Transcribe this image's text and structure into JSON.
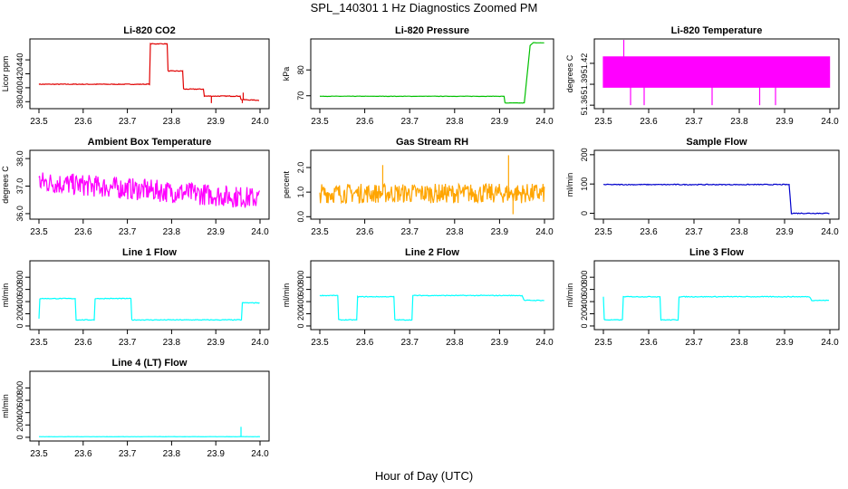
{
  "figure": {
    "title": "SPL_140301  1 Hz Diagnostics Zoomed PM",
    "xlabel": "Hour of Day (UTC)"
  },
  "chart_data": [
    {
      "type": "line",
      "title": "Li-820 CO2",
      "ylabel": "Licor ppm",
      "color": "#e00000",
      "xlim": [
        23.5,
        24.0
      ],
      "ylim": [
        370,
        470
      ],
      "xticks": [
        "23.5",
        "23.6",
        "23.7",
        "23.8",
        "23.9",
        "24.0"
      ],
      "yticks": [
        {
          "v": 380,
          "label": "380"
        },
        {
          "v": 400,
          "label": "400"
        },
        {
          "v": 420,
          "label": "420"
        },
        {
          "v": 440,
          "label": "440"
        }
      ],
      "noise": 1,
      "points": [
        [
          23.5,
          405
        ],
        [
          23.75,
          405
        ],
        [
          23.752,
          463
        ],
        [
          23.79,
          463
        ],
        [
          23.792,
          424
        ],
        [
          23.825,
          424
        ],
        [
          23.827,
          398
        ],
        [
          23.872,
          398
        ],
        [
          23.874,
          388
        ],
        [
          23.955,
          388
        ],
        [
          23.957,
          383
        ],
        [
          24.0,
          382
        ]
      ],
      "spikes": [
        [
          23.89,
          378
        ],
        [
          23.96,
          378
        ],
        [
          23.962,
          393
        ]
      ]
    },
    {
      "type": "line",
      "title": "Li-820 Pressure",
      "ylabel": "kPa",
      "color": "#00c000",
      "xlim": [
        23.5,
        24.0
      ],
      "ylim": [
        65,
        92
      ],
      "xticks": [
        "23.5",
        "23.6",
        "23.7",
        "23.8",
        "23.9",
        "24.0"
      ],
      "yticks": [
        {
          "v": 70,
          "label": "70"
        },
        {
          "v": 80,
          "label": "80"
        }
      ],
      "noise": 0.15,
      "points": [
        [
          23.5,
          69.8
        ],
        [
          23.91,
          69.8
        ],
        [
          23.912,
          67.2
        ],
        [
          23.955,
          67.2
        ],
        [
          23.968,
          89.5
        ],
        [
          23.975,
          90.5
        ],
        [
          24.0,
          90.5
        ]
      ],
      "spikes": []
    },
    {
      "type": "line",
      "title": "Li-820 Temperature",
      "ylabel": "degrees C",
      "color": "#ff00ff",
      "xlim": [
        23.5,
        24.0
      ],
      "ylim": [
        51.355,
        51.455
      ],
      "xticks": [
        "23.5",
        "23.6",
        "23.7",
        "23.8",
        "23.9",
        "24.0"
      ],
      "yticks": [
        {
          "v": 51.36,
          "label": "51.36"
        },
        {
          "v": 51.39,
          "label": "51.39"
        },
        {
          "v": 51.42,
          "label": "51.42"
        }
      ],
      "band": [
        51.385,
        51.43
      ],
      "points": [],
      "spikes": [
        [
          23.545,
          51.455
        ],
        [
          23.56,
          51.36
        ],
        [
          23.59,
          51.36
        ],
        [
          23.74,
          51.36
        ],
        [
          23.845,
          51.36
        ],
        [
          23.88,
          51.36
        ]
      ]
    },
    {
      "type": "line",
      "title": "Ambient Box Temperature",
      "ylabel": "degrees C",
      "color": "#ff00ff",
      "xlim": [
        23.5,
        24.0
      ],
      "ylim": [
        35.8,
        38.3
      ],
      "xticks": [
        "23.5",
        "23.6",
        "23.7",
        "23.8",
        "23.9",
        "24.0"
      ],
      "yticks": [
        {
          "v": 36,
          "label": "36.0"
        },
        {
          "v": 37,
          "label": "37.0"
        },
        {
          "v": 38,
          "label": "38.0"
        }
      ],
      "trend": [
        [
          23.5,
          37.15
        ],
        [
          24.0,
          36.55
        ]
      ],
      "noise": 0.8,
      "points": [],
      "spikes": []
    },
    {
      "type": "line",
      "title": "Gas Stream RH",
      "ylabel": "percent",
      "color": "#ffa500",
      "xlim": [
        23.5,
        24.0
      ],
      "ylim": [
        -0.1,
        2.7
      ],
      "xticks": [
        "23.5",
        "23.6",
        "23.7",
        "23.8",
        "23.9",
        "24.0"
      ],
      "yticks": [
        {
          "v": 0,
          "label": "0.0"
        },
        {
          "v": 1,
          "label": "1.0"
        },
        {
          "v": 2,
          "label": "2.0"
        }
      ],
      "trend": [
        [
          23.5,
          0.95
        ],
        [
          24.0,
          0.95
        ]
      ],
      "noise": 0.8,
      "points": [],
      "spikes": [
        [
          23.64,
          2.1
        ],
        [
          23.92,
          2.5
        ],
        [
          23.93,
          0.1
        ]
      ]
    },
    {
      "type": "line",
      "title": "Sample Flow",
      "ylabel": "ml/min",
      "color": "#0000cc",
      "xlim": [
        23.5,
        24.0
      ],
      "ylim": [
        -20,
        215
      ],
      "xticks": [
        "23.5",
        "23.6",
        "23.7",
        "23.8",
        "23.9",
        "24.0"
      ],
      "yticks": [
        {
          "v": 0,
          "label": "0"
        },
        {
          "v": 100,
          "label": "100"
        },
        {
          "v": 200,
          "label": "200"
        }
      ],
      "noise": 3,
      "points": [
        [
          23.5,
          98
        ],
        [
          23.91,
          98
        ],
        [
          23.915,
          0
        ],
        [
          24.0,
          0
        ]
      ],
      "spikes": []
    },
    {
      "type": "line",
      "title": "Line 1 Flow",
      "ylabel": "ml/min",
      "color": "#00ffff",
      "xlim": [
        23.5,
        24.0
      ],
      "ylim": [
        -60,
        1070
      ],
      "xticks": [
        "23.5",
        "23.6",
        "23.7",
        "23.8",
        "23.9",
        "24.0"
      ],
      "yticks": [
        {
          "v": 0,
          "label": "0"
        },
        {
          "v": 200,
          "label": "200"
        },
        {
          "v": 400,
          "label": "400"
        },
        {
          "v": 600,
          "label": "600"
        },
        {
          "v": 800,
          "label": "800"
        }
      ],
      "noise": 12,
      "points": [
        [
          23.5,
          120
        ],
        [
          23.502,
          450
        ],
        [
          23.582,
          450
        ],
        [
          23.584,
          100
        ],
        [
          23.625,
          100
        ],
        [
          23.627,
          450
        ],
        [
          23.708,
          450
        ],
        [
          23.71,
          100
        ],
        [
          23.958,
          100
        ],
        [
          23.96,
          380
        ],
        [
          24.0,
          380
        ]
      ],
      "spikes": []
    },
    {
      "type": "line",
      "title": "Line 2 Flow",
      "ylabel": "ml/min",
      "color": "#00ffff",
      "xlim": [
        23.5,
        24.0
      ],
      "ylim": [
        -60,
        1070
      ],
      "xticks": [
        "23.5",
        "23.6",
        "23.7",
        "23.8",
        "23.9",
        "24.0"
      ],
      "yticks": [
        {
          "v": 0,
          "label": "0"
        },
        {
          "v": 200,
          "label": "200"
        },
        {
          "v": 400,
          "label": "400"
        },
        {
          "v": 600,
          "label": "600"
        },
        {
          "v": 800,
          "label": "800"
        }
      ],
      "noise": 12,
      "points": [
        [
          23.5,
          500
        ],
        [
          23.54,
          500
        ],
        [
          23.542,
          100
        ],
        [
          23.582,
          100
        ],
        [
          23.584,
          480
        ],
        [
          23.665,
          480
        ],
        [
          23.667,
          100
        ],
        [
          23.705,
          100
        ],
        [
          23.707,
          500
        ],
        [
          23.95,
          500
        ],
        [
          23.955,
          420
        ],
        [
          24.0,
          420
        ]
      ],
      "spikes": []
    },
    {
      "type": "line",
      "title": "Line 3 Flow",
      "ylabel": "ml/min",
      "color": "#00ffff",
      "xlim": [
        23.5,
        24.0
      ],
      "ylim": [
        -60,
        1070
      ],
      "xticks": [
        "23.5",
        "23.6",
        "23.7",
        "23.8",
        "23.9",
        "24.0"
      ],
      "yticks": [
        {
          "v": 0,
          "label": "0"
        },
        {
          "v": 200,
          "label": "200"
        },
        {
          "v": 400,
          "label": "400"
        },
        {
          "v": 600,
          "label": "600"
        },
        {
          "v": 800,
          "label": "800"
        }
      ],
      "noise": 12,
      "points": [
        [
          23.5,
          480
        ],
        [
          23.502,
          100
        ],
        [
          23.542,
          100
        ],
        [
          23.544,
          480
        ],
        [
          23.625,
          480
        ],
        [
          23.627,
          100
        ],
        [
          23.665,
          100
        ],
        [
          23.667,
          480
        ],
        [
          23.955,
          480
        ],
        [
          23.96,
          420
        ],
        [
          24.0,
          420
        ]
      ],
      "spikes": []
    },
    {
      "type": "line",
      "title": "Line 4 (LT) Flow",
      "ylabel": "ml/min",
      "color": "#00ffff",
      "xlim": [
        23.5,
        24.0
      ],
      "ylim": [
        -60,
        1070
      ],
      "xticks": [
        "23.5",
        "23.6",
        "23.7",
        "23.8",
        "23.9",
        "24.0"
      ],
      "yticks": [
        {
          "v": 0,
          "label": "0"
        },
        {
          "v": 200,
          "label": "200"
        },
        {
          "v": 400,
          "label": "400"
        },
        {
          "v": 600,
          "label": "600"
        },
        {
          "v": 800,
          "label": "800"
        }
      ],
      "noise": 3,
      "points": [
        [
          23.5,
          10
        ],
        [
          24.0,
          10
        ]
      ],
      "spikes": [
        [
          23.957,
          170
        ]
      ]
    }
  ]
}
